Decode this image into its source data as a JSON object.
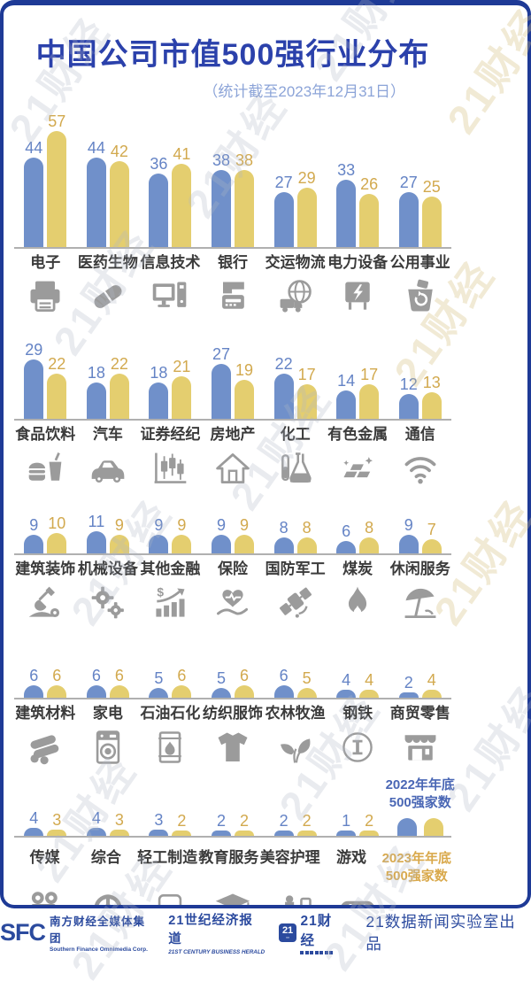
{
  "header": {
    "title": "中国公司市值500强行业分布",
    "subtitle": "（统计截至2023年12月31日）"
  },
  "watermark_text": "21财经",
  "colors": {
    "bar_blue": "#7090CA",
    "bar_yellow": "#E4CE6F",
    "value_blue_text": "#6483C5",
    "value_yellow_text": "#D2A94E",
    "navy_border": "#1E3A96",
    "title_blue": "#2B41AB",
    "subtitle_blue": "#8CA4D8",
    "footer_blue": "#2B4A9E"
  },
  "legend": {
    "blue_line1": "2022年年底",
    "blue_line2": "500强家数",
    "yellow_line1": "2023年年底",
    "yellow_line2": "500强家数"
  },
  "chart_data": {
    "type": "bar",
    "title": "中国公司市值500强行业分布",
    "subtitle": "（统计截至2023年12月31日）",
    "series": [
      {
        "name": "2022年年底500强家数",
        "key": "v2022",
        "color": "#7090CA"
      },
      {
        "name": "2023年年底500强家数",
        "key": "v2023",
        "color": "#E4CE6F"
      }
    ],
    "unit": "家数",
    "rows": [
      {
        "items": [
          {
            "label": "电子",
            "icon": "printer-icon",
            "v2022": 44,
            "v2023": 57
          },
          {
            "label": "医药生物",
            "icon": "capsule-icon",
            "v2022": 44,
            "v2023": 42
          },
          {
            "label": "信息技术",
            "icon": "computer-icon",
            "v2022": 36,
            "v2023": 41
          },
          {
            "label": "银行",
            "icon": "atm-icon",
            "v2022": 38,
            "v2023": 38
          },
          {
            "label": "交运物流",
            "icon": "globe-truck-icon",
            "v2022": 27,
            "v2023": 29
          },
          {
            "label": "电力设备",
            "icon": "power-box-icon",
            "v2022": 33,
            "v2023": 26
          },
          {
            "label": "公用事业",
            "icon": "recycle-bin-icon",
            "v2022": 27,
            "v2023": 25
          }
        ]
      },
      {
        "items": [
          {
            "label": "食品饮料",
            "icon": "burger-drink-icon",
            "v2022": 29,
            "v2023": 22
          },
          {
            "label": "汽车",
            "icon": "car-icon",
            "v2022": 18,
            "v2023": 22
          },
          {
            "label": "证券经纪",
            "icon": "candlestick-chart-icon",
            "v2022": 18,
            "v2023": 21
          },
          {
            "label": "房地产",
            "icon": "house-icon",
            "v2022": 27,
            "v2023": 19
          },
          {
            "label": "化工",
            "icon": "flask-icon",
            "v2022": 22,
            "v2023": 17
          },
          {
            "label": "有色金属",
            "icon": "gold-bars-icon",
            "v2022": 14,
            "v2023": 17
          },
          {
            "label": "通信",
            "icon": "wifi-icon",
            "v2022": 12,
            "v2023": 13
          }
        ]
      },
      {
        "items": [
          {
            "label": "建筑装饰",
            "icon": "shovel-icon",
            "v2022": 9,
            "v2023": 10
          },
          {
            "label": "机械设备",
            "icon": "gears-icon",
            "v2022": 11,
            "v2023": 9
          },
          {
            "label": "其他金融",
            "icon": "growth-chart-icon",
            "v2022": 9,
            "v2023": 9
          },
          {
            "label": "保险",
            "icon": "heart-hand-icon",
            "v2022": 9,
            "v2023": 9
          },
          {
            "label": "国防军工",
            "icon": "satellite-icon",
            "v2022": 8,
            "v2023": 8
          },
          {
            "label": "煤炭",
            "icon": "flame-icon",
            "v2022": 6,
            "v2023": 8
          },
          {
            "label": "休闲服务",
            "icon": "beach-umbrella-icon",
            "v2022": 9,
            "v2023": 7
          }
        ]
      },
      {
        "items": [
          {
            "label": "建筑材料",
            "icon": "logs-icon",
            "v2022": 6,
            "v2023": 6
          },
          {
            "label": "家电",
            "icon": "washing-machine-icon",
            "v2022": 6,
            "v2023": 6
          },
          {
            "label": "石油石化",
            "icon": "oil-barrel-icon",
            "v2022": 5,
            "v2023": 6
          },
          {
            "label": "纺织服饰",
            "icon": "tshirt-icon",
            "v2022": 5,
            "v2023": 6
          },
          {
            "label": "农林牧渔",
            "icon": "leaves-icon",
            "v2022": 6,
            "v2023": 5
          },
          {
            "label": "钢铁",
            "icon": "steel-beam-icon",
            "v2022": 4,
            "v2023": 4
          },
          {
            "label": "商贸零售",
            "icon": "storefront-icon",
            "v2022": 2,
            "v2023": 4
          }
        ]
      },
      {
        "items": [
          {
            "label": "传媒",
            "icon": "movie-camera-icon",
            "v2022": 4,
            "v2023": 3
          },
          {
            "label": "综合",
            "icon": "steering-wheel-icon",
            "v2022": 4,
            "v2023": 3
          },
          {
            "label": "轻工制造",
            "icon": "armchair-icon",
            "v2022": 3,
            "v2023": 2
          },
          {
            "label": "教育服务",
            "icon": "graduation-cap-icon",
            "v2022": 2,
            "v2023": 2
          },
          {
            "label": "美容护理",
            "icon": "lipstick-icon",
            "v2022": 2,
            "v2023": 2
          },
          {
            "label": "游戏",
            "icon": "game-controller-icon",
            "v2022": 1,
            "v2023": 2
          }
        ]
      }
    ]
  },
  "footer": {
    "sfc_logo": "SFC",
    "sfc_cn": "南方财经全媒体集团",
    "sfc_en": "Southern Finance Omnimedia Corp.",
    "herald_cn": "21世纪经济报道",
    "herald_en": "21ST CENTURY BUSINESS HERALD",
    "badge_21": "21",
    "caijing_cn": "21财经",
    "produced_by": "21数据新闻实验室出品"
  }
}
